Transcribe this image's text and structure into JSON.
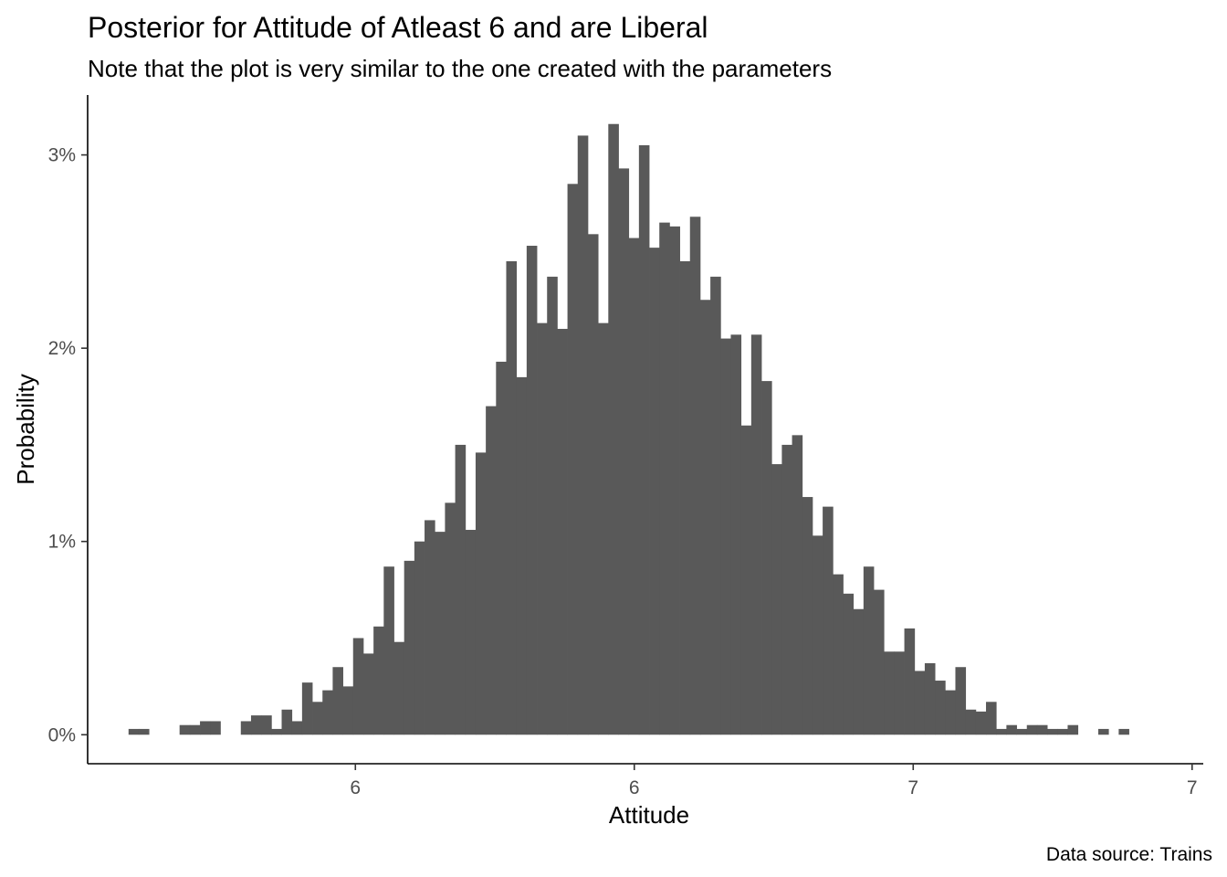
{
  "chart_data": {
    "type": "bar",
    "title": "Posterior for Attitude of Atleast 6 and are Liberal",
    "subtitle": "Note that the plot is very similar to the one created with the parameters",
    "xlabel": "Attitude",
    "ylabel": "Probability",
    "caption": "Data source: Trains",
    "x_ticks": [
      {
        "value": 5.5,
        "label": "6"
      },
      {
        "value": 6.0,
        "label": "6"
      },
      {
        "value": 6.5,
        "label": "7"
      },
      {
        "value": 7.0,
        "label": "7"
      }
    ],
    "y_ticks": [
      {
        "value": 0,
        "label": "0%"
      },
      {
        "value": 0.01,
        "label": "1%"
      },
      {
        "value": 0.02,
        "label": "2%"
      },
      {
        "value": 0.03,
        "label": "3%"
      }
    ],
    "xlim": [
      5.02,
      7.02
    ],
    "ylim": [
      -0.0015,
      0.0331
    ],
    "bin_width": 0.0183,
    "bins_start": 5.0933,
    "values": [
      0.0003,
      0.0003,
      0,
      0,
      0,
      0.0005,
      0.0005,
      0.0007,
      0.0007,
      0,
      0,
      0.0007,
      0.001,
      0.001,
      0.0003,
      0.0013,
      0.0007,
      0.0027,
      0.0017,
      0.0023,
      0.0035,
      0.0025,
      0.005,
      0.0042,
      0.0056,
      0.0087,
      0.0048,
      0.009,
      0.01,
      0.0111,
      0.0105,
      0.012,
      0.015,
      0.0106,
      0.0146,
      0.017,
      0.0193,
      0.0245,
      0.0185,
      0.0253,
      0.0213,
      0.0237,
      0.021,
      0.0285,
      0.031,
      0.0259,
      0.0213,
      0.0316,
      0.0293,
      0.0257,
      0.0305,
      0.0252,
      0.0265,
      0.0263,
      0.0245,
      0.0268,
      0.0225,
      0.0237,
      0.0205,
      0.0207,
      0.016,
      0.0207,
      0.0183,
      0.014,
      0.015,
      0.0155,
      0.0123,
      0.0103,
      0.0118,
      0.0083,
      0.0073,
      0.0065,
      0.0087,
      0.0075,
      0.0043,
      0.0043,
      0.0055,
      0.0033,
      0.0037,
      0.0028,
      0.0023,
      0.0035,
      0.0013,
      0.0012,
      0.0017,
      0.0003,
      0.0005,
      0.0003,
      0.0005,
      0.0005,
      0.0003,
      0.0003,
      0.0005,
      0,
      0,
      0.0003,
      0,
      0.0003
    ]
  }
}
